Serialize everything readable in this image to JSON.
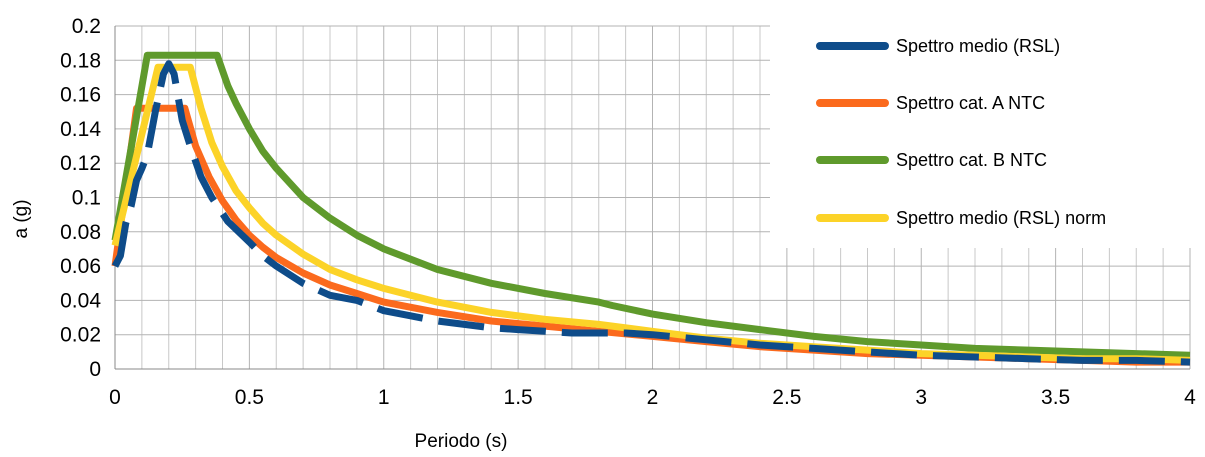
{
  "chart_data": {
    "type": "line",
    "xlabel": "Periodo (s)",
    "ylabel": "a (g)",
    "xlim": [
      0,
      4
    ],
    "ylim": [
      0,
      0.2
    ],
    "x_ticks": [
      "0",
      "0.5",
      "1",
      "1.5",
      "2",
      "2.5",
      "3",
      "3.5",
      "4"
    ],
    "y_ticks": [
      "0",
      "0.02",
      "0.04",
      "0.06",
      "0.08",
      "0.1",
      "0.12",
      "0.14",
      "0.16",
      "0.18",
      "0.2"
    ],
    "grid": true,
    "legend_position": "top-right",
    "series": [
      {
        "name": "Spettro medio (RSL)",
        "color": "#0e4c8a",
        "dashed": true,
        "points": [
          [
            0,
            0.06
          ],
          [
            0.02,
            0.066
          ],
          [
            0.04,
            0.085
          ],
          [
            0.06,
            0.095
          ],
          [
            0.08,
            0.11
          ],
          [
            0.1,
            0.117
          ],
          [
            0.12,
            0.125
          ],
          [
            0.15,
            0.15
          ],
          [
            0.18,
            0.172
          ],
          [
            0.2,
            0.178
          ],
          [
            0.22,
            0.172
          ],
          [
            0.25,
            0.145
          ],
          [
            0.28,
            0.13
          ],
          [
            0.32,
            0.112
          ],
          [
            0.36,
            0.1
          ],
          [
            0.42,
            0.086
          ],
          [
            0.5,
            0.074
          ],
          [
            0.55,
            0.066
          ],
          [
            0.6,
            0.06
          ],
          [
            0.7,
            0.05
          ],
          [
            0.8,
            0.043
          ],
          [
            0.9,
            0.04
          ],
          [
            1.0,
            0.034
          ],
          [
            1.1,
            0.031
          ],
          [
            1.2,
            0.028
          ],
          [
            1.3,
            0.026
          ],
          [
            1.4,
            0.024
          ],
          [
            1.5,
            0.023
          ],
          [
            1.6,
            0.022
          ],
          [
            1.7,
            0.021
          ],
          [
            1.8,
            0.021
          ],
          [
            1.9,
            0.021
          ],
          [
            2.0,
            0.02
          ],
          [
            2.2,
            0.017
          ],
          [
            2.4,
            0.014
          ],
          [
            2.6,
            0.012
          ],
          [
            2.8,
            0.01
          ],
          [
            3.0,
            0.008
          ],
          [
            3.2,
            0.007
          ],
          [
            3.4,
            0.006
          ],
          [
            3.6,
            0.005
          ],
          [
            3.8,
            0.005
          ],
          [
            4.0,
            0.004
          ]
        ]
      },
      {
        "name": "Spettro cat. A NTC",
        "color": "#fb6a1d",
        "dashed": false,
        "points": [
          [
            0,
            0.06
          ],
          [
            0.08,
            0.152
          ],
          [
            0.26,
            0.152
          ],
          [
            0.3,
            0.13
          ],
          [
            0.35,
            0.112
          ],
          [
            0.4,
            0.098
          ],
          [
            0.45,
            0.087
          ],
          [
            0.5,
            0.078
          ],
          [
            0.55,
            0.071
          ],
          [
            0.6,
            0.065
          ],
          [
            0.7,
            0.056
          ],
          [
            0.8,
            0.049
          ],
          [
            0.9,
            0.044
          ],
          [
            1.0,
            0.039
          ],
          [
            1.2,
            0.033
          ],
          [
            1.4,
            0.028
          ],
          [
            1.6,
            0.025
          ],
          [
            1.8,
            0.022
          ],
          [
            2.0,
            0.019
          ],
          [
            2.2,
            0.016
          ],
          [
            2.4,
            0.013
          ],
          [
            2.6,
            0.011
          ],
          [
            2.8,
            0.009
          ],
          [
            3.0,
            0.008
          ],
          [
            3.2,
            0.007
          ],
          [
            3.4,
            0.006
          ],
          [
            3.6,
            0.005
          ],
          [
            3.8,
            0.004
          ],
          [
            4.0,
            0.004
          ]
        ]
      },
      {
        "name": "Spettro cat. B NTC",
        "color": "#5f9a2c",
        "dashed": false,
        "points": [
          [
            0,
            0.075
          ],
          [
            0.12,
            0.183
          ],
          [
            0.38,
            0.183
          ],
          [
            0.42,
            0.165
          ],
          [
            0.45,
            0.155
          ],
          [
            0.5,
            0.14
          ],
          [
            0.55,
            0.127
          ],
          [
            0.6,
            0.117
          ],
          [
            0.7,
            0.1
          ],
          [
            0.8,
            0.088
          ],
          [
            0.9,
            0.078
          ],
          [
            1.0,
            0.07
          ],
          [
            1.2,
            0.058
          ],
          [
            1.4,
            0.05
          ],
          [
            1.6,
            0.044
          ],
          [
            1.8,
            0.039
          ],
          [
            1.85,
            0.037
          ],
          [
            2.0,
            0.032
          ],
          [
            2.2,
            0.027
          ],
          [
            2.4,
            0.023
          ],
          [
            2.6,
            0.019
          ],
          [
            2.8,
            0.016
          ],
          [
            3.0,
            0.014
          ],
          [
            3.2,
            0.012
          ],
          [
            3.4,
            0.011
          ],
          [
            3.6,
            0.01
          ],
          [
            3.8,
            0.009
          ],
          [
            4.0,
            0.008
          ]
        ]
      },
      {
        "name": "Spettro medio (RSL) norm",
        "color": "#fcd328",
        "dashed": false,
        "points": [
          [
            0,
            0.072
          ],
          [
            0.16,
            0.176
          ],
          [
            0.28,
            0.176
          ],
          [
            0.32,
            0.152
          ],
          [
            0.36,
            0.132
          ],
          [
            0.4,
            0.118
          ],
          [
            0.45,
            0.104
          ],
          [
            0.5,
            0.094
          ],
          [
            0.55,
            0.085
          ],
          [
            0.6,
            0.078
          ],
          [
            0.7,
            0.067
          ],
          [
            0.8,
            0.058
          ],
          [
            0.9,
            0.052
          ],
          [
            1.0,
            0.047
          ],
          [
            1.2,
            0.039
          ],
          [
            1.4,
            0.033
          ],
          [
            1.6,
            0.029
          ],
          [
            1.8,
            0.026
          ],
          [
            2.0,
            0.022
          ],
          [
            2.2,
            0.018
          ],
          [
            2.4,
            0.015
          ],
          [
            2.6,
            0.013
          ],
          [
            2.8,
            0.011
          ],
          [
            3.0,
            0.009
          ],
          [
            3.2,
            0.008
          ],
          [
            3.4,
            0.007
          ],
          [
            3.6,
            0.006
          ],
          [
            3.8,
            0.006
          ],
          [
            4.0,
            0.005
          ]
        ]
      }
    ]
  }
}
